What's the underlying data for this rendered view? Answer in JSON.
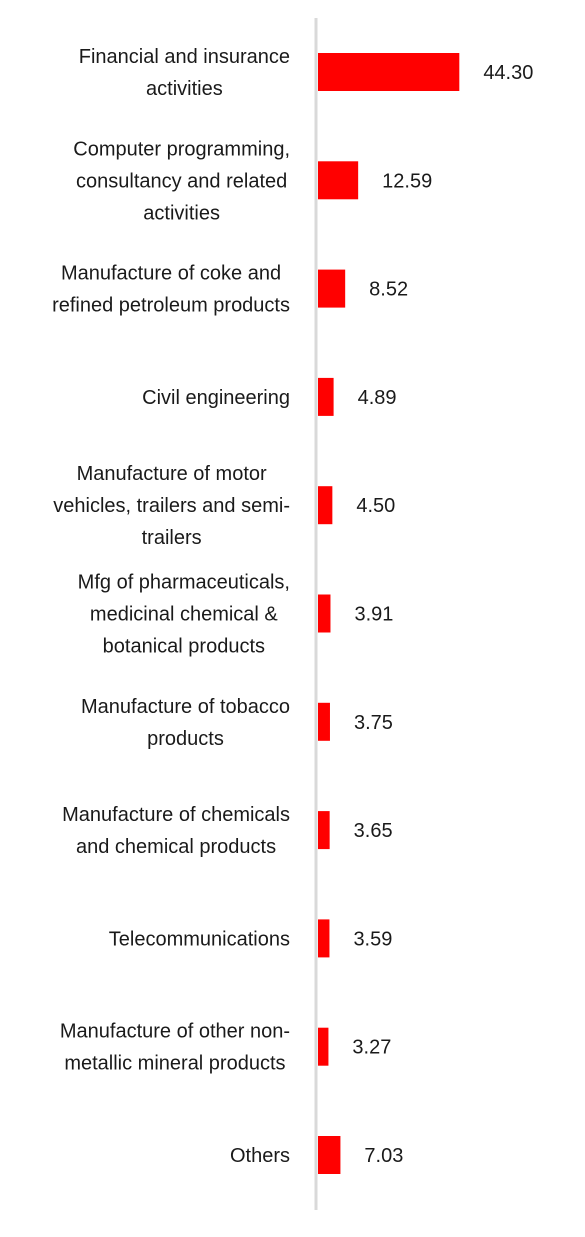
{
  "chart_data": {
    "type": "bar",
    "orientation": "horizontal",
    "categories": [
      "Financial and insurance activities",
      "Computer programming, consultancy and related activities",
      "Manufacture of coke and refined petroleum products",
      "Civil engineering",
      "Manufacture of motor vehicles, trailers and semi-trailers",
      "Mfg of pharmaceuticals, medicinal chemical & botanical products",
      "Manufacture of tobacco products",
      "Manufacture of chemicals and chemical products",
      "Telecommunications",
      "Manufacture of other non-metallic mineral products",
      "Others"
    ],
    "category_label_lines": [
      [
        "Financial and insurance",
        "activities"
      ],
      [
        "Computer programming,",
        "consultancy and related",
        "activities"
      ],
      [
        "Manufacture of coke and",
        "refined petroleum products"
      ],
      [
        "Civil engineering"
      ],
      [
        "Manufacture of motor",
        "vehicles, trailers and semi-",
        "trailers"
      ],
      [
        "Mfg of pharmaceuticals,",
        "medicinal chemical &",
        "botanical products"
      ],
      [
        "Manufacture of tobacco",
        "products"
      ],
      [
        "Manufacture of chemicals",
        "and chemical products"
      ],
      [
        "Telecommunications"
      ],
      [
        "Manufacture of other non-",
        "metallic mineral products"
      ],
      [
        "Others"
      ]
    ],
    "values": [
      44.3,
      12.59,
      8.52,
      4.89,
      4.5,
      3.91,
      3.75,
      3.65,
      3.59,
      3.27,
      7.03
    ],
    "data_labels": [
      "44.30",
      "12.59",
      "8.52",
      "4.89",
      "4.50",
      "3.91",
      "3.75",
      "3.65",
      "3.59",
      "3.27",
      "7.03"
    ],
    "xlim": [
      0,
      50
    ],
    "grid": false,
    "legend": "none",
    "bar_color": "#ff0000",
    "axis_color": "#d9d9d9",
    "text_color": "#1a1a1a"
  }
}
